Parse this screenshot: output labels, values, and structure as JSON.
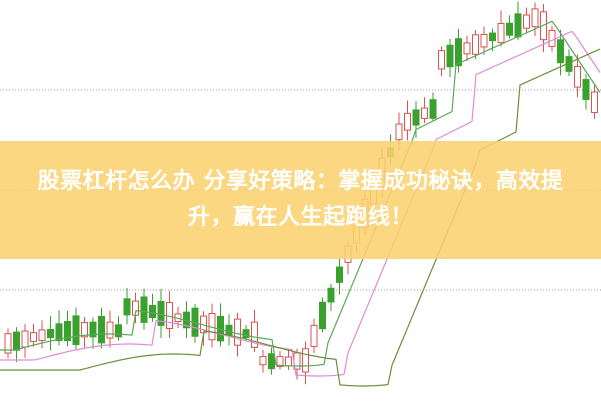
{
  "banner": {
    "title": "股票杠杆怎么办 分享好策略：掌握成功秘诀，高效提升，赢在人生起跑线！",
    "background": "#f9d26e",
    "text_color": "#ffffff"
  },
  "colors": {
    "up": "#d9534f",
    "down": "#3aa12f",
    "ma_green": "#5aa85a",
    "ma_pink": "#e08ad8",
    "ma_olive": "#6a8f3a"
  }
}
